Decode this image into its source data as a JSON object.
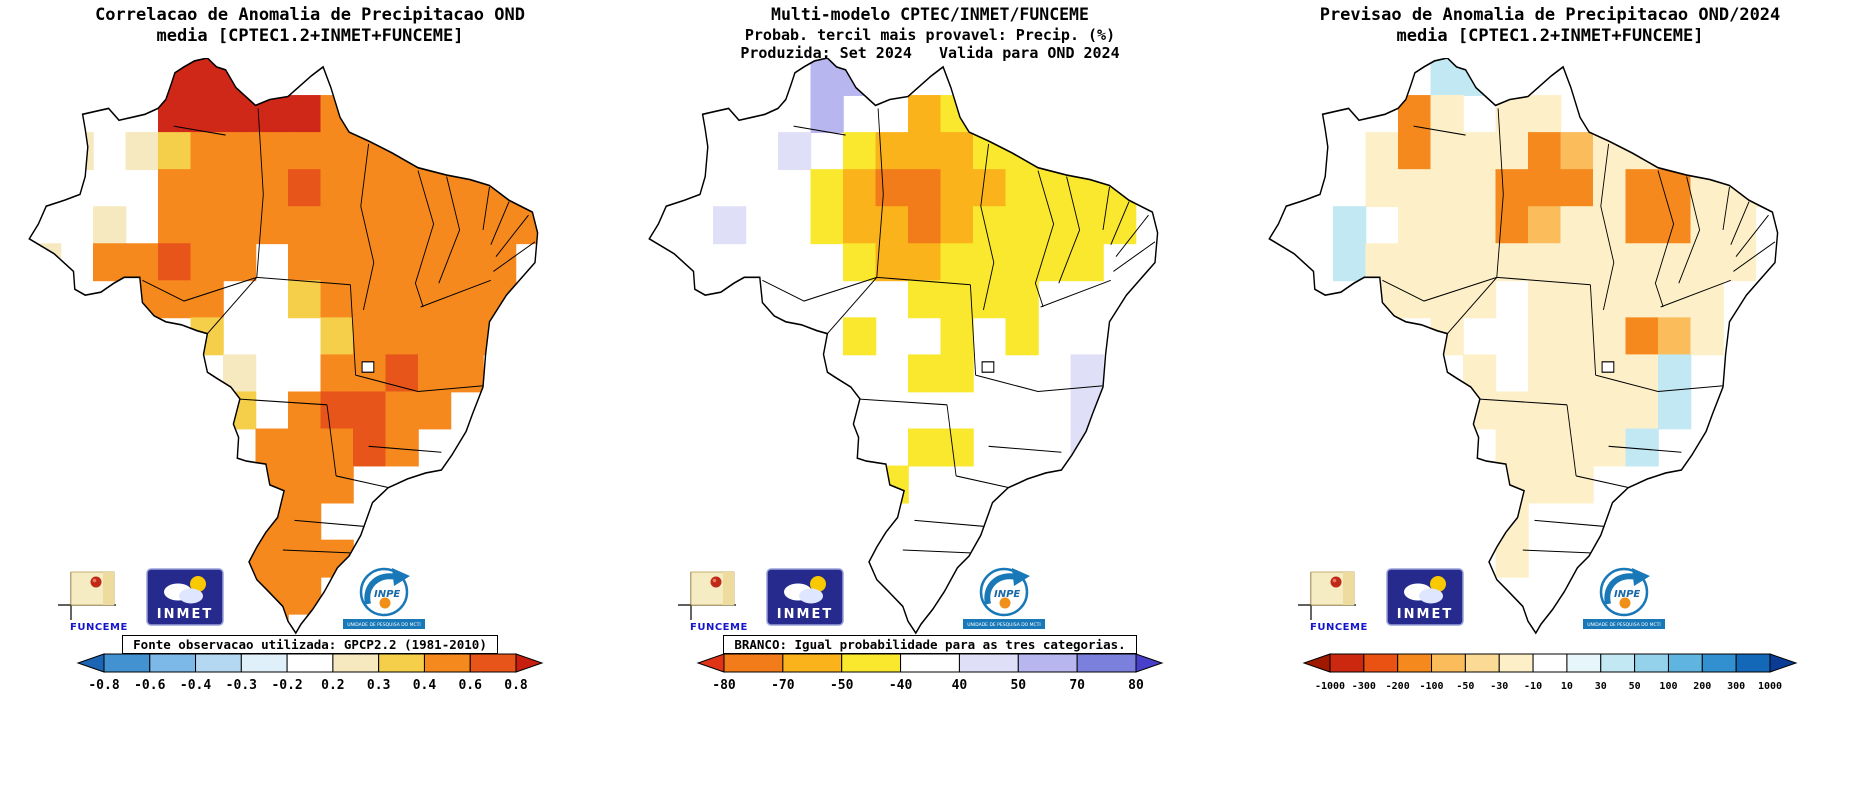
{
  "logos": {
    "funceme": "FUNCEME",
    "inmet": "INMET",
    "inpe": "INPE",
    "inpe_banner": "UNIDADE DE PESQUISA DO MCTI"
  },
  "colors": {
    "background": "#ffffff",
    "outline": "#000000"
  },
  "panels": [
    {
      "id": "correlation",
      "title_lines": [
        "Correlacao de Anomalia de Precipitacao OND",
        "media [CPTEC1.2+INMET+FUNCEME]"
      ],
      "caption": "Fonte observacao utilizada: GPCP2.2 (1981-2010)",
      "colorbar": {
        "tick_labels": [
          "-0.8",
          "-0.6",
          "-0.4",
          "-0.3",
          "-0.2",
          "0.2",
          "0.3",
          "0.4",
          "0.6",
          "0.8"
        ],
        "colors": [
          "#1c64b4",
          "#4292d2",
          "#7cb8e8",
          "#b4d8f2",
          "#e0f0fa",
          "#ffffff",
          "#f6e9c0",
          "#f6cf4a",
          "#f5891e",
          "#e8551a",
          "#c81e10"
        ]
      },
      "map": {
        "palette": {
          "R": "#d02818",
          "D": "#e8551a",
          "O": "#f5891e",
          "Y": "#f6cf4a",
          "C": "#f6e9c0"
        },
        "grid_rows": [
          "....RRR.........",
          "....RRRRROO.....",
          ".C.CYOOOOOOOOOO.",
          "....OOOODOOOOOOO",
          "..C.OOOOOOOOOOOO",
          "C.OODOO.OOOOOOO.",
          "...OOO..YOOOOOO.",
          ".....Y...YOOOOO.",
          "......C..OODOO..",
          "......Y.ODDOO...",
          ".......OOODO....",
          "......OOOO......",
          "......YOO.......",
          "......OOOO......",
          "......OOO.......",
          ".......O........"
        ]
      }
    },
    {
      "id": "probability",
      "title_lines": [
        "Multi-modelo CPTEC/INMET/FUNCEME",
        "Probab. tercil mais provavel: Precip. (%)",
        "Produzida: Set 2024   Valida para OND 2024"
      ],
      "caption": "BRANCO: Igual probabilidade para as tres categorias.",
      "colorbar": {
        "tick_labels": [
          "-80",
          "-70",
          "-50",
          "-40",
          "40",
          "50",
          "70",
          "80"
        ],
        "colors": [
          "#e03418",
          "#f27b1a",
          "#fbb31c",
          "#f9e82e",
          "#ffffff",
          "#e0dff8",
          "#b7b6ee",
          "#7b80dd",
          "#4840c8"
        ]
      },
      "map": {
        "palette": {
          "O": "#f27b1a",
          "G": "#fbb31c",
          "Y": "#f9e82e",
          "L": "#e0dff8",
          "P": "#b7b6ee"
        },
        "grid_rows": [
          ".....PP.........",
          ".....P..GY......",
          "....L.YGGGYY.Y..",
          ".....YGOOGGYYYY.",
          "..L..YGGOGYYYYY.",
          "......YGGYYYYY..",
          "........YYYY....",
          "......Y..Y.Y....",
          "........YY...L..",
          ".............L..",
          "........YY...L..",
          ".......Y........",
          "................",
          "................",
          "................",
          "................"
        ]
      }
    },
    {
      "id": "forecast",
      "title_lines": [
        "Previsao de Anomalia de Precipitacao OND/2024",
        "media [CPTEC1.2+INMET+FUNCEME]"
      ],
      "caption": "",
      "colorbar": {
        "tick_labels": [
          "-1000",
          "-300",
          "-200",
          "-100",
          "-50",
          "-30",
          "-10",
          "10",
          "30",
          "50",
          "100",
          "200",
          "300",
          "1000"
        ],
        "colors": [
          "#a01800",
          "#cc2810",
          "#ea5214",
          "#f5891e",
          "#fbbc5c",
          "#fbda96",
          "#fdf0c8",
          "#ffffff",
          "#e6f6fa",
          "#c2e8f4",
          "#94d2ec",
          "#60b4e0",
          "#3390d0",
          "#1468b8",
          "#0a3c94"
        ]
      },
      "map": {
        "palette": {
          "O": "#f5891e",
          "o": "#fbbc5c",
          "C": "#fdf0c8",
          "B": "#c2e8f4"
        },
        "grid_rows": [
          ".....BB.........",
          "....OC.CC.......",
          "...COCCCOoCC.C..",
          "...CCCCOOOCOOCCC",
          "..B.CCCOoCCOOCC.",
          "..BCCCCCCCCCCCC.",
          "...CCCC.CCCCCC..",
          ".....C..CCCOoC..",
          "......C.CCCCB...",
          "......CCCCCCB...",
          ".......CCCCB....",
          "......CCCC......",
          "......CC........",
          ".....B.C........",
          "................",
          "................"
        ]
      }
    }
  ]
}
